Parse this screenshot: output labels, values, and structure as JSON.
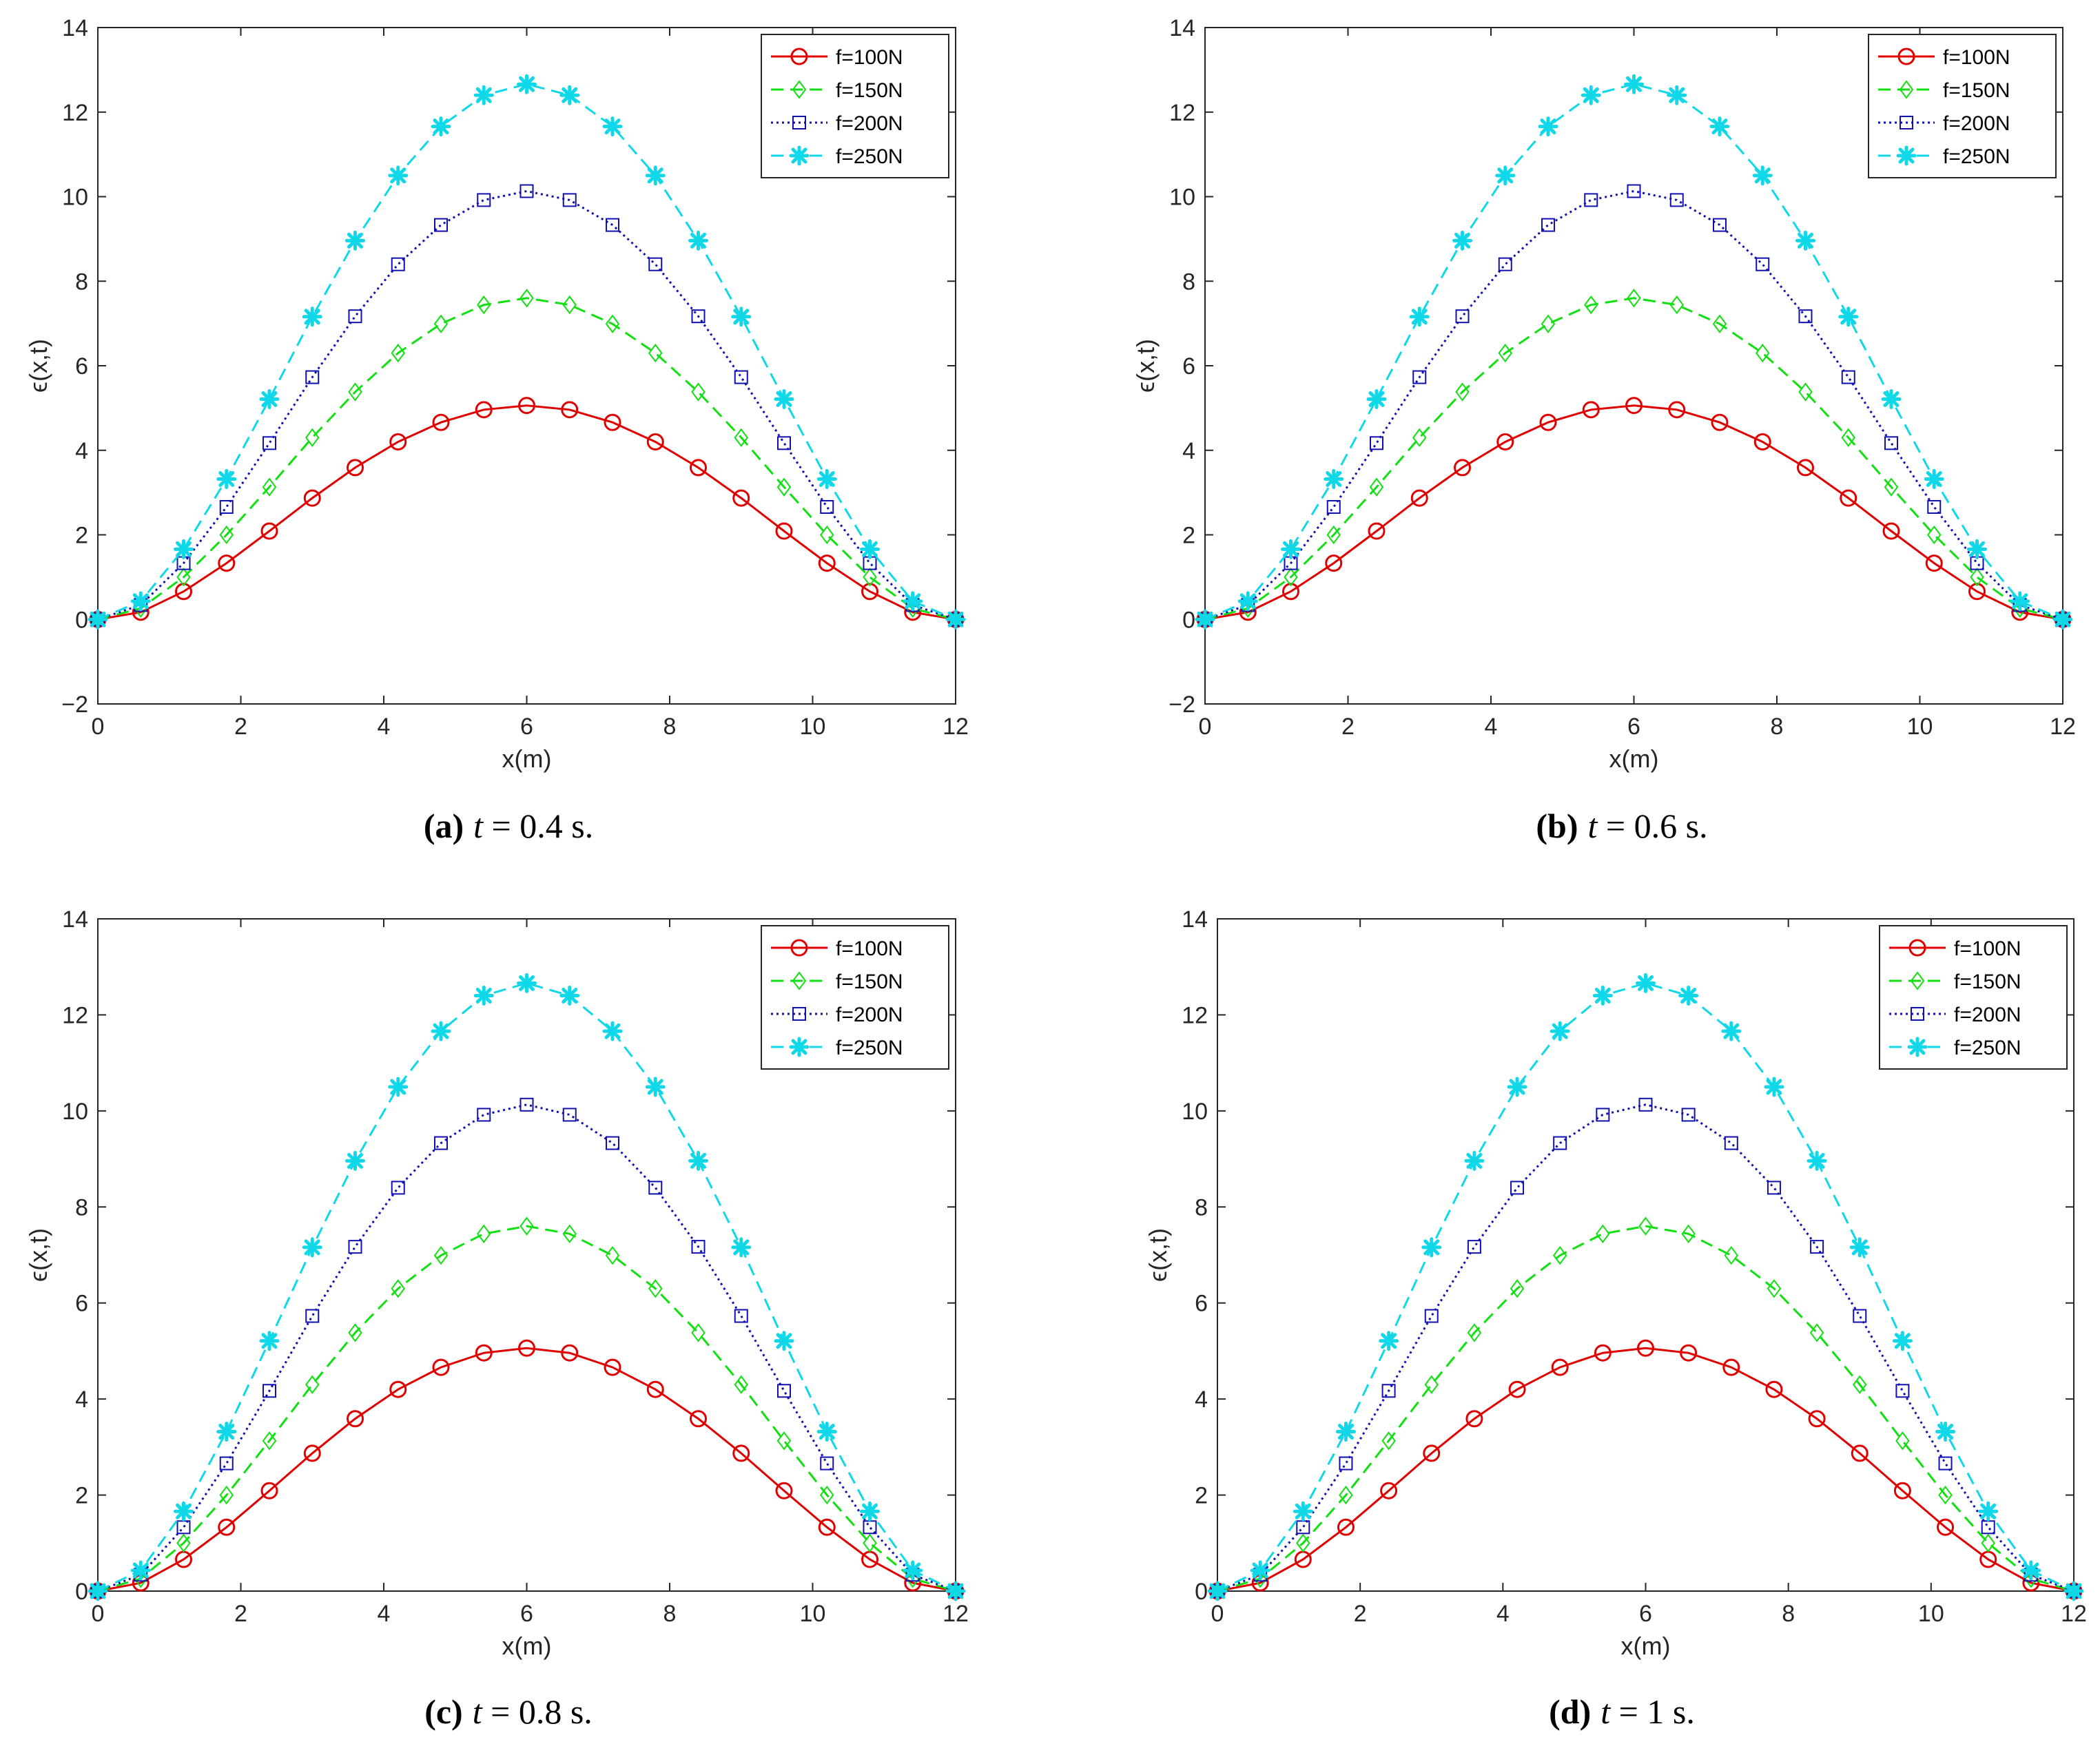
{
  "chart_data": [
    {
      "type": "line",
      "panel": "a",
      "caption": {
        "label": "(a)",
        "var": "t",
        "rest": " = 0.4 s."
      },
      "xlabel": "x(m)",
      "ylabel": "ϵ(x,t)",
      "xlim": [
        0,
        12
      ],
      "ylim": [
        -2,
        14
      ],
      "xticks": [
        0,
        2,
        4,
        6,
        8,
        10,
        12
      ],
      "yticks": [
        -2,
        0,
        2,
        4,
        6,
        8,
        10,
        12,
        14
      ],
      "ytick_labels": [
        "−2",
        "0",
        "2",
        "4",
        "6",
        "8",
        "10",
        "12",
        "14"
      ],
      "legend_position": "top-right",
      "x": [
        0,
        0.6,
        1.2,
        1.8,
        2.4,
        3.0,
        3.6,
        4.2,
        4.8,
        5.4,
        6.0,
        6.6,
        7.2,
        7.8,
        8.4,
        9.0,
        9.6,
        10.2,
        10.8,
        11.4,
        12
      ],
      "series": [
        {
          "name": "f=100N",
          "color": "#e00000",
          "marker": "circle",
          "style": "solid",
          "values": [
            0,
            0.17,
            0.66,
            1.33,
            2.09,
            2.87,
            3.59,
            4.2,
            4.66,
            4.96,
            5.06,
            4.96,
            4.66,
            4.2,
            3.59,
            2.87,
            2.09,
            1.33,
            0.66,
            0.17,
            0
          ]
        },
        {
          "name": "f=150N",
          "color": "#10e010",
          "marker": "diamond",
          "style": "dashed",
          "values": [
            0,
            0.26,
            1.0,
            2.0,
            3.13,
            4.3,
            5.38,
            6.3,
            6.99,
            7.44,
            7.6,
            7.44,
            6.99,
            6.3,
            5.38,
            4.3,
            3.13,
            2.0,
            1.0,
            0.26,
            0
          ]
        },
        {
          "name": "f=200N",
          "color": "#1010b0",
          "marker": "square",
          "style": "dotted",
          "values": [
            0,
            0.34,
            1.33,
            2.66,
            4.17,
            5.73,
            7.17,
            8.4,
            9.33,
            9.92,
            10.13,
            9.92,
            9.33,
            8.4,
            7.17,
            5.73,
            4.17,
            2.66,
            1.33,
            0.34,
            0
          ]
        },
        {
          "name": "f=250N",
          "color": "#10d8e8",
          "marker": "asterisk",
          "style": "dashed",
          "values": [
            0,
            0.43,
            1.66,
            3.32,
            5.21,
            7.16,
            8.96,
            10.5,
            11.66,
            12.4,
            12.66,
            12.4,
            11.66,
            10.5,
            8.96,
            7.16,
            5.21,
            3.32,
            1.66,
            0.43,
            0
          ]
        }
      ]
    },
    {
      "type": "line",
      "panel": "b",
      "caption": {
        "label": "(b)",
        "var": "t",
        "rest": " = 0.6 s."
      },
      "xlabel": "x(m)",
      "ylabel": "ϵ(x,t)",
      "xlim": [
        0,
        12
      ],
      "ylim": [
        -2,
        14
      ],
      "xticks": [
        0,
        2,
        4,
        6,
        8,
        10,
        12
      ],
      "yticks": [
        -2,
        0,
        2,
        4,
        6,
        8,
        10,
        12,
        14
      ],
      "ytick_labels": [
        "−2",
        "0",
        "2",
        "4",
        "6",
        "8",
        "10",
        "12",
        "14"
      ],
      "legend_position": "top-right",
      "x": [
        0,
        0.6,
        1.2,
        1.8,
        2.4,
        3.0,
        3.6,
        4.2,
        4.8,
        5.4,
        6.0,
        6.6,
        7.2,
        7.8,
        8.4,
        9.0,
        9.6,
        10.2,
        10.8,
        11.4,
        12
      ],
      "series": [
        {
          "name": "f=100N",
          "color": "#e00000",
          "marker": "circle",
          "style": "solid",
          "values": [
            0,
            0.17,
            0.66,
            1.33,
            2.09,
            2.87,
            3.59,
            4.2,
            4.66,
            4.96,
            5.06,
            4.96,
            4.66,
            4.2,
            3.59,
            2.87,
            2.09,
            1.33,
            0.66,
            0.17,
            0
          ]
        },
        {
          "name": "f=150N",
          "color": "#10e010",
          "marker": "diamond",
          "style": "dashed",
          "values": [
            0,
            0.26,
            1.0,
            2.0,
            3.13,
            4.3,
            5.38,
            6.3,
            6.99,
            7.44,
            7.6,
            7.44,
            6.99,
            6.3,
            5.38,
            4.3,
            3.13,
            2.0,
            1.0,
            0.26,
            0
          ]
        },
        {
          "name": "f=200N",
          "color": "#1010b0",
          "marker": "square",
          "style": "dotted",
          "values": [
            0,
            0.34,
            1.33,
            2.66,
            4.17,
            5.73,
            7.17,
            8.4,
            9.33,
            9.92,
            10.13,
            9.92,
            9.33,
            8.4,
            7.17,
            5.73,
            4.17,
            2.66,
            1.33,
            0.34,
            0
          ]
        },
        {
          "name": "f=250N",
          "color": "#10d8e8",
          "marker": "asterisk",
          "style": "dashed",
          "values": [
            0,
            0.43,
            1.66,
            3.32,
            5.21,
            7.16,
            8.96,
            10.5,
            11.66,
            12.4,
            12.66,
            12.4,
            11.66,
            10.5,
            8.96,
            7.16,
            5.21,
            3.32,
            1.66,
            0.43,
            0
          ]
        }
      ]
    },
    {
      "type": "line",
      "panel": "c",
      "caption": {
        "label": "(c)",
        "var": "t",
        "rest": " = 0.8 s."
      },
      "xlabel": "x(m)",
      "ylabel": "ϵ(x,t)",
      "xlim": [
        0,
        12
      ],
      "ylim": [
        0,
        14
      ],
      "xticks": [
        0,
        2,
        4,
        6,
        8,
        10,
        12
      ],
      "yticks": [
        0,
        2,
        4,
        6,
        8,
        10,
        12,
        14
      ],
      "ytick_labels": [
        "0",
        "2",
        "4",
        "6",
        "8",
        "10",
        "12",
        "14"
      ],
      "legend_position": "top-right",
      "x": [
        0,
        0.6,
        1.2,
        1.8,
        2.4,
        3.0,
        3.6,
        4.2,
        4.8,
        5.4,
        6.0,
        6.6,
        7.2,
        7.8,
        8.4,
        9.0,
        9.6,
        10.2,
        10.8,
        11.4,
        12
      ],
      "series": [
        {
          "name": "f=100N",
          "color": "#e00000",
          "marker": "circle",
          "style": "solid",
          "values": [
            0,
            0.17,
            0.66,
            1.33,
            2.09,
            2.87,
            3.59,
            4.2,
            4.66,
            4.96,
            5.06,
            4.96,
            4.66,
            4.2,
            3.59,
            2.87,
            2.09,
            1.33,
            0.66,
            0.17,
            0
          ]
        },
        {
          "name": "f=150N",
          "color": "#10e010",
          "marker": "diamond",
          "style": "dashed",
          "values": [
            0,
            0.26,
            1.0,
            2.0,
            3.13,
            4.3,
            5.38,
            6.3,
            6.99,
            7.44,
            7.6,
            7.44,
            6.99,
            6.3,
            5.38,
            4.3,
            3.13,
            2.0,
            1.0,
            0.26,
            0
          ]
        },
        {
          "name": "f=200N",
          "color": "#1010b0",
          "marker": "square",
          "style": "dotted",
          "values": [
            0,
            0.34,
            1.33,
            2.66,
            4.17,
            5.73,
            7.17,
            8.4,
            9.33,
            9.92,
            10.13,
            9.92,
            9.33,
            8.4,
            7.17,
            5.73,
            4.17,
            2.66,
            1.33,
            0.34,
            0
          ]
        },
        {
          "name": "f=250N",
          "color": "#10d8e8",
          "marker": "asterisk",
          "style": "dashed",
          "values": [
            0,
            0.43,
            1.66,
            3.32,
            5.21,
            7.16,
            8.96,
            10.5,
            11.66,
            12.4,
            12.66,
            12.4,
            11.66,
            10.5,
            8.96,
            7.16,
            5.21,
            3.32,
            1.66,
            0.43,
            0
          ]
        }
      ]
    },
    {
      "type": "line",
      "panel": "d",
      "caption": {
        "label": "(d)",
        "var": "t",
        "rest": " = 1 s."
      },
      "xlabel": "x(m)",
      "ylabel": "ϵ(x,t)",
      "xlim": [
        0,
        12
      ],
      "ylim": [
        0,
        14
      ],
      "xticks": [
        0,
        2,
        4,
        6,
        8,
        10,
        12
      ],
      "yticks": [
        0,
        2,
        4,
        6,
        8,
        10,
        12,
        14
      ],
      "ytick_labels": [
        "0",
        "2",
        "4",
        "6",
        "8",
        "10",
        "12",
        "14"
      ],
      "legend_position": "top-right",
      "x": [
        0,
        0.6,
        1.2,
        1.8,
        2.4,
        3.0,
        3.6,
        4.2,
        4.8,
        5.4,
        6.0,
        6.6,
        7.2,
        7.8,
        8.4,
        9.0,
        9.6,
        10.2,
        10.8,
        11.4,
        12
      ],
      "series": [
        {
          "name": "f=100N",
          "color": "#e00000",
          "marker": "circle",
          "style": "solid",
          "values": [
            0,
            0.17,
            0.66,
            1.33,
            2.09,
            2.87,
            3.59,
            4.2,
            4.66,
            4.96,
            5.06,
            4.96,
            4.66,
            4.2,
            3.59,
            2.87,
            2.09,
            1.33,
            0.66,
            0.17,
            0
          ]
        },
        {
          "name": "f=150N",
          "color": "#10e010",
          "marker": "diamond",
          "style": "dashed",
          "values": [
            0,
            0.26,
            1.0,
            2.0,
            3.13,
            4.3,
            5.38,
            6.3,
            6.99,
            7.44,
            7.6,
            7.44,
            6.99,
            6.3,
            5.38,
            4.3,
            3.13,
            2.0,
            1.0,
            0.26,
            0
          ]
        },
        {
          "name": "f=200N",
          "color": "#1010b0",
          "marker": "square",
          "style": "dotted",
          "values": [
            0,
            0.34,
            1.33,
            2.66,
            4.17,
            5.73,
            7.17,
            8.4,
            9.33,
            9.92,
            10.13,
            9.92,
            9.33,
            8.4,
            7.17,
            5.73,
            4.17,
            2.66,
            1.33,
            0.34,
            0
          ]
        },
        {
          "name": "f=250N",
          "color": "#10d8e8",
          "marker": "asterisk",
          "style": "dashed",
          "values": [
            0,
            0.43,
            1.66,
            3.32,
            5.21,
            7.16,
            8.96,
            10.5,
            11.66,
            12.4,
            12.66,
            12.4,
            11.66,
            10.5,
            8.96,
            7.16,
            5.21,
            3.32,
            1.66,
            0.43,
            0
          ]
        }
      ]
    }
  ]
}
